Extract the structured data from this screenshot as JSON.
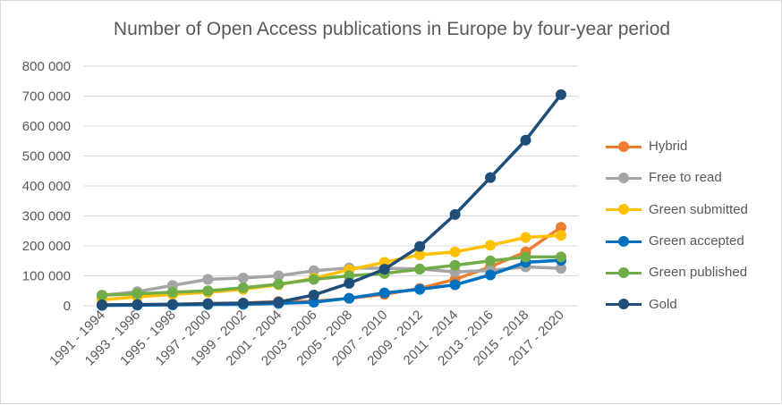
{
  "chart_data": {
    "type": "line",
    "title": "Number of Open Access publications in Europe by four-year period",
    "xlabel": "",
    "ylabel": "",
    "ylim": [
      0,
      800000
    ],
    "yticks": [
      "0",
      "100 000",
      "200 000",
      "300 000",
      "400 000",
      "500 000",
      "600 000",
      "700 000",
      "800 000"
    ],
    "grid": true,
    "legend_placement": "right",
    "categories": [
      "1991 - 1994",
      "1993 - 1996",
      "1995 - 1998",
      "1997 - 2000",
      "1999 - 2002",
      "2001 - 2004",
      "2003 - 2006",
      "2005 - 2008",
      "2007 - 2010",
      "2009 - 2012",
      "2011 - 2014",
      "2013 - 2016",
      "2015 - 2018",
      "2017 - 2020"
    ],
    "series": [
      {
        "name": "Hybrid",
        "color": "#ED7D31",
        "values": [
          2000,
          3000,
          5000,
          7000,
          9000,
          14000,
          15000,
          25000,
          38000,
          58000,
          88000,
          130000,
          180000,
          262000
        ]
      },
      {
        "name": "Free to read",
        "color": "#A5A5A5",
        "values": [
          35000,
          47000,
          68000,
          88000,
          93000,
          100000,
          117000,
          126000,
          125000,
          123000,
          113000,
          118000,
          130000,
          125000
        ]
      },
      {
        "name": "Green submitted",
        "color": "#FFC000",
        "values": [
          20000,
          30000,
          38000,
          45000,
          55000,
          70000,
          92000,
          120000,
          145000,
          170000,
          180000,
          202000,
          228000,
          235000
        ]
      },
      {
        "name": "Green accepted",
        "color": "#0070C0",
        "values": [
          1000,
          2000,
          3000,
          4000,
          5000,
          8000,
          12000,
          25000,
          43000,
          55000,
          70000,
          103000,
          145000,
          152000
        ]
      },
      {
        "name": "Green published",
        "color": "#70AD47",
        "values": [
          35000,
          40000,
          45000,
          50000,
          60000,
          72000,
          88000,
          100000,
          108000,
          122000,
          135000,
          150000,
          163000,
          163000
        ]
      },
      {
        "name": "Gold",
        "color": "#1F4E79",
        "values": [
          3000,
          4000,
          5000,
          7000,
          9000,
          12000,
          36000,
          75000,
          122000,
          198000,
          305000,
          428000,
          553000,
          705000
        ]
      }
    ]
  }
}
